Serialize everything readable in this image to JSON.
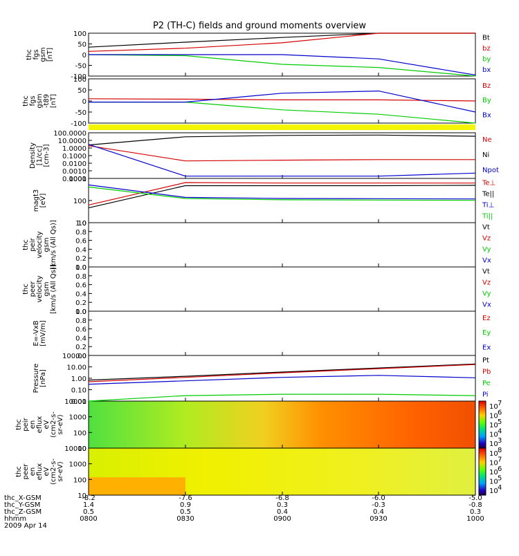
{
  "title": "P2 (TH-C) fields and ground moments overview",
  "colors": {
    "black": "#000000",
    "red": "#d40000",
    "green": "#00cc00",
    "blue": "#0000cc",
    "yellow": "#f5f500"
  },
  "panels": [
    {
      "id": "fgs",
      "ylabel": [
        "thc",
        "fgs",
        "gsm",
        "[nT]"
      ],
      "yticks": [
        "100",
        "50",
        "0",
        "-50",
        "-100"
      ],
      "legend": [
        {
          "text": "Bt",
          "color": "black"
        },
        {
          "text": "bz",
          "color": "red"
        },
        {
          "text": "by",
          "color": "green"
        },
        {
          "text": "bx",
          "color": "blue"
        }
      ]
    },
    {
      "id": "fgs_t89",
      "ylabel": [
        "thc",
        "fgs",
        "gsm",
        "-t89",
        "[nT]"
      ],
      "yticks": [
        "100",
        "50",
        "0",
        "-50",
        "-100"
      ],
      "legend": [
        {
          "text": "Bz",
          "color": "red"
        },
        {
          "text": "By",
          "color": "green"
        },
        {
          "text": "Bx",
          "color": "blue"
        }
      ]
    },
    {
      "id": "density",
      "ylabel": [
        "Density",
        "[1/cc]",
        "[cm-3]"
      ],
      "yticks": [
        "100.0000",
        "10.0000",
        "1.0000",
        "0.1000",
        "0.0100",
        "0.0010",
        "0.0001"
      ],
      "legend": [
        {
          "text": "Ne",
          "color": "red"
        },
        {
          "text": "Ni",
          "color": "black"
        },
        {
          "text": "Npot",
          "color": "blue"
        }
      ]
    },
    {
      "id": "temp",
      "ylabel": [
        "magt3",
        "[eV]"
      ],
      "yticks": [
        "1000",
        "100",
        "10"
      ],
      "legend": [
        {
          "text": "Te⊥",
          "color": "red"
        },
        {
          "text": "Te||",
          "color": "black"
        },
        {
          "text": "Ti⊥",
          "color": "blue"
        },
        {
          "text": "Ti||",
          "color": "green"
        }
      ]
    },
    {
      "id": "vel_i",
      "ylabel": [
        "thc",
        "peir",
        "velocity",
        "gsm",
        "[km/s (All Qs)]"
      ],
      "yticks": [
        "1.0",
        "0.8",
        "0.6",
        "0.4",
        "0.2",
        "0.0"
      ],
      "legend": [
        {
          "text": "Vt",
          "color": "black"
        },
        {
          "text": "Vz",
          "color": "red"
        },
        {
          "text": "Vy",
          "color": "green"
        },
        {
          "text": "Vx",
          "color": "blue"
        }
      ]
    },
    {
      "id": "vel_e",
      "ylabel": [
        "thc",
        "peer",
        "velocity",
        "gsm",
        "[km/s (All Qs)]"
      ],
      "yticks": [
        "1.0",
        "0.8",
        "0.6",
        "0.4",
        "0.2",
        "0.0"
      ],
      "legend": [
        {
          "text": "Vt",
          "color": "black"
        },
        {
          "text": "Vz",
          "color": "red"
        },
        {
          "text": "Vy",
          "color": "green"
        },
        {
          "text": "Vx",
          "color": "blue"
        }
      ]
    },
    {
      "id": "efield",
      "ylabel": [
        "E=-VxB",
        "[mV/m]"
      ],
      "yticks": [
        "1.0",
        "0.8",
        "0.6",
        "0.4",
        "0.2",
        "0.0"
      ],
      "legend": [
        {
          "text": "Ez",
          "color": "red"
        },
        {
          "text": "Ey",
          "color": "green"
        },
        {
          "text": "Ex",
          "color": "blue"
        }
      ]
    },
    {
      "id": "pressure",
      "ylabel": [
        "Pressure",
        "[nPa]"
      ],
      "yticks": [
        "100.00",
        "10.00",
        "1.00",
        "0.10",
        "0.01"
      ],
      "legend": [
        {
          "text": "Pt",
          "color": "black"
        },
        {
          "text": "Pb",
          "color": "red"
        },
        {
          "text": "Pe",
          "color": "green"
        },
        {
          "text": "Pi",
          "color": "blue"
        }
      ]
    },
    {
      "id": "spec_i",
      "ylabel": [
        "thc",
        "peir",
        "en",
        "eflux",
        "eV",
        "(cm2-s-",
        "sr-eV)"
      ],
      "yticks": [
        "10000",
        "1000",
        "100",
        "10"
      ],
      "cbar": [
        "10",
        "10",
        "10",
        "10",
        "10"
      ],
      "cbar_exp": [
        "7",
        "6",
        "5",
        "4",
        "3"
      ]
    },
    {
      "id": "spec_e",
      "ylabel": [
        "thc",
        "peer",
        "en",
        "eflux",
        "eV",
        "(cm2-s-",
        "sr-eV)"
      ],
      "yticks": [
        "10000",
        "1000",
        "100",
        "10"
      ],
      "cbar": [
        "10",
        "10",
        "10",
        "10",
        "10"
      ],
      "cbar_exp": [
        "8",
        "7",
        "6",
        "5",
        "4"
      ]
    }
  ],
  "xaxis": {
    "row_labels": [
      "thc_X-GSM",
      "thc_Y-GSM",
      "thc_Z-GSM",
      "hhmm",
      "2009 Apr 14"
    ],
    "columns": [
      [
        "-8.2",
        "1.4",
        "0.5",
        "0800"
      ],
      [
        "-7.6",
        "0.9",
        "0.5",
        "0830"
      ],
      [
        "-6.8",
        "0.3",
        "0.4",
        "0900"
      ],
      [
        "-6.0",
        "-0.3",
        "0.4",
        "0930"
      ],
      [
        "-5.0",
        "-0.8",
        "0.3",
        "1000"
      ]
    ]
  },
  "chart_data": [
    {
      "type": "line",
      "title": "thc fgs gsm [nT]",
      "x": [
        "0800",
        "0830",
        "0900",
        "0930",
        "1000"
      ],
      "ylim": [
        -100,
        100
      ],
      "series": [
        {
          "name": "Bt",
          "values": [
            35,
            58,
            80,
            100,
            120
          ]
        },
        {
          "name": "bz",
          "values": [
            15,
            30,
            55,
            100,
            130
          ]
        },
        {
          "name": "by",
          "values": [
            0,
            -5,
            -45,
            -60,
            -100
          ]
        },
        {
          "name": "bx",
          "values": [
            0,
            0,
            0,
            -20,
            -95
          ]
        }
      ]
    },
    {
      "type": "line",
      "title": "thc fgs gsm -t89 [nT]",
      "x": [
        "0800",
        "0830",
        "0900",
        "0930",
        "1000"
      ],
      "ylim": [
        -100,
        100
      ],
      "series": [
        {
          "name": "Bz",
          "values": [
            10,
            8,
            5,
            5,
            0
          ]
        },
        {
          "name": "By",
          "values": [
            -5,
            -5,
            -40,
            -60,
            -100
          ]
        },
        {
          "name": "Bx",
          "values": [
            -5,
            -5,
            35,
            45,
            -50
          ]
        }
      ]
    },
    {
      "type": "line",
      "title": "Density [1/cc] [cm-3]",
      "x": [
        "0800",
        "0830",
        "0900",
        "0930",
        "1000"
      ],
      "ylim": [
        0.0001,
        100
      ],
      "yscale": "log",
      "series": [
        {
          "name": "Ne",
          "values": [
            2,
            0.02,
            0.025,
            0.03,
            0.03
          ]
        },
        {
          "name": "Ni",
          "values": [
            2.5,
            30,
            45,
            50,
            35
          ]
        },
        {
          "name": "Npot",
          "values": [
            3,
            0.0002,
            0.0002,
            0.0002,
            0.0005
          ]
        }
      ]
    },
    {
      "type": "line",
      "title": "magt3 [eV]",
      "x": [
        "0800",
        "0830",
        "0900",
        "0930",
        "1000"
      ],
      "ylim": [
        10,
        5000
      ],
      "yscale": "log",
      "series": [
        {
          "name": "Te⊥",
          "values": [
            120,
            2800,
            2600,
            2600,
            2600
          ]
        },
        {
          "name": "Te||",
          "values": [
            80,
            1800,
            1800,
            1800,
            1900
          ]
        },
        {
          "name": "Ti⊥",
          "values": [
            2000,
            350,
            300,
            290,
            280
          ]
        },
        {
          "name": "Ti||",
          "values": [
            1500,
            300,
            250,
            240,
            230
          ]
        }
      ]
    },
    {
      "type": "line",
      "title": "Pressure [nPa]",
      "x": [
        "0800",
        "0830",
        "0900",
        "0930",
        "1000"
      ],
      "ylim": [
        0.01,
        100
      ],
      "yscale": "log",
      "series": [
        {
          "name": "Pt",
          "values": [
            0.7,
            1.5,
            3.5,
            8,
            18
          ]
        },
        {
          "name": "Pb",
          "values": [
            0.5,
            1.2,
            3,
            7,
            16
          ]
        },
        {
          "name": "Pe",
          "values": [
            0.01,
            0.03,
            0.04,
            0.04,
            0.03
          ]
        },
        {
          "name": "Pi",
          "values": [
            0.3,
            0.6,
            1.2,
            1.8,
            1.1
          ]
        }
      ]
    }
  ]
}
